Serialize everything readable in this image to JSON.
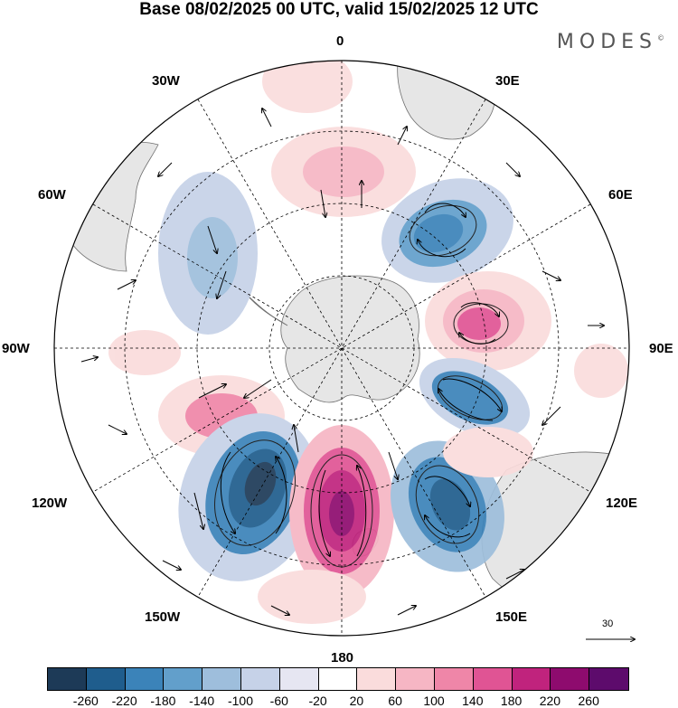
{
  "title": "Base 08/02/2025 00 UTC, valid 15/02/2025 12 UTC",
  "brand": "MODES",
  "brand_mark": "©",
  "map": {
    "projection": "south polar stereographic",
    "lon_labels": {
      "top": "0",
      "top_right": "30E",
      "right_upper": "60E",
      "right": "90E",
      "right_lower": "120E",
      "bottom_right": "150E",
      "bottom": "180",
      "bottom_left": "150W",
      "left_lower": "120W",
      "left": "90W",
      "left_upper": "60W",
      "top_left": "30W"
    },
    "vector_scale_label": "30",
    "colors": {
      "land": "#e6e6e6",
      "coast": "#6f6f6f"
    }
  },
  "colorbar": {
    "colors": [
      "#1d3a57",
      "#1f5d8d",
      "#3b83b9",
      "#629fcb",
      "#9ebedc",
      "#c6d2e8",
      "#e6e6f2",
      "#ffffff",
      "#fadcdc",
      "#f6b6c4",
      "#ef86a8",
      "#e05494",
      "#c0237d",
      "#8e0b6e",
      "#5d0b6c"
    ],
    "ticks": [
      "-260",
      "-220",
      "-180",
      "-140",
      "-100",
      "-60",
      "-20",
      "20",
      "60",
      "100",
      "140",
      "180",
      "220",
      "260"
    ]
  }
}
